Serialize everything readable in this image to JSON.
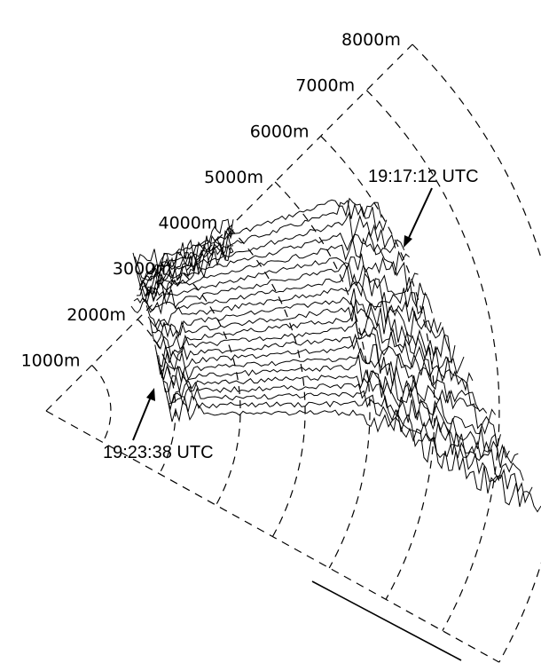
{
  "range_rings": [
    "1000m",
    "2000m",
    "3000m",
    "4000m",
    "5000m",
    "6000m",
    "7000m",
    "8000m"
  ],
  "annotations": {
    "start_time": "19:17:12 UTC",
    "end_time": "19:23:38 UTC"
  },
  "colors": {
    "line": "#000000",
    "background": "#ffffff"
  }
}
